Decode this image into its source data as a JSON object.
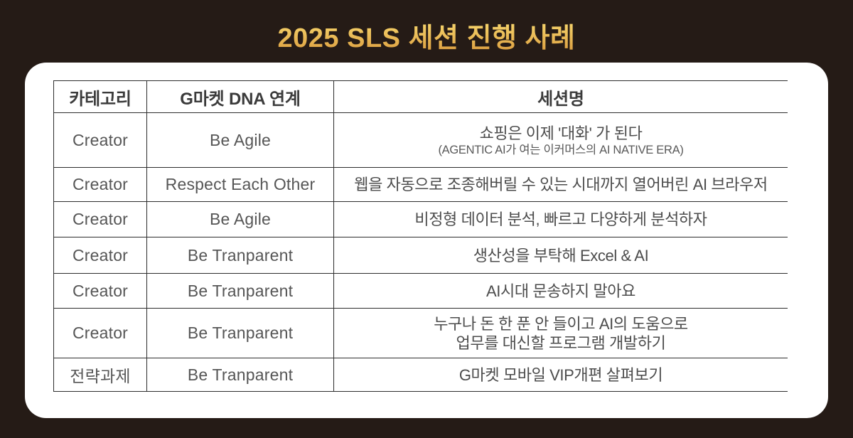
{
  "page": {
    "title": "2025 SLS 세션 진행 사례"
  },
  "colors": {
    "background": "#251b16",
    "card": "#ffffff",
    "title_gradient_top": "#fdeda0",
    "title_gradient_bottom": "#d9993c",
    "table_border": "#2d2d2d",
    "header_text": "#3b3b3b",
    "body_text": "#4c4c4c"
  },
  "table": {
    "headers": [
      "카테고리",
      "G마켓 DNA 연계",
      "세션명"
    ],
    "rows": [
      {
        "category": "Creator",
        "dna": "Be Agile",
        "session": [
          "쇼핑은 이제 '대화' 가 된다"
        ],
        "session_sub": "(AGENTIC AI가 여는 이커머스의 AI NATIVE ERA)"
      },
      {
        "category": "Creator",
        "dna": "Respect Each Other",
        "session": [
          "웹을 자동으로 조종해버릴 수 있는 시대까지 열어버린 AI 브라우저"
        ]
      },
      {
        "category": "Creator",
        "dna": "Be Agile",
        "session": [
          "비정형 데이터 분석, 빠르고 다양하게 분석하자"
        ]
      },
      {
        "category": "Creator",
        "dna": "Be Tranparent",
        "session": [
          "생산성을 부탁해 Excel & AI"
        ]
      },
      {
        "category": "Creator",
        "dna": "Be Tranparent",
        "session": [
          "AI시대 문송하지 말아요"
        ]
      },
      {
        "category": "Creator",
        "dna": "Be Tranparent",
        "session": [
          "누구나 돈 한 푼 안 들이고 AI의 도움으로",
          "업무를 대신할 프로그램 개발하기"
        ]
      },
      {
        "category": "전략과제",
        "dna": "Be Tranparent",
        "session": [
          "G마켓 모바일 VIP개편 살펴보기"
        ]
      }
    ]
  }
}
